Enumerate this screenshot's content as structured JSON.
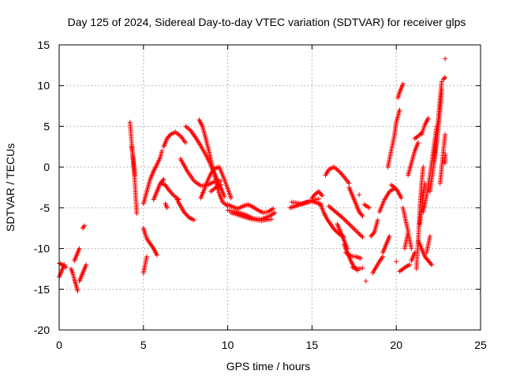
{
  "chart_data": {
    "type": "scatter",
    "title": "Day 125 of 2024, Sidereal Day-to-day VTEC variation (SDTVAR) for receiver glps",
    "xlabel": "GPS time / hours",
    "ylabel": "SDTVAR / TECUs",
    "xlim": [
      0,
      25
    ],
    "ylim": [
      -20,
      15
    ],
    "xticks": [
      0,
      5,
      10,
      15,
      20,
      25
    ],
    "yticks": [
      -20,
      -15,
      -10,
      -5,
      0,
      5,
      10,
      15
    ],
    "grid": true,
    "marker": "+",
    "series": [
      {
        "name": "SDTVAR",
        "color": "#ff0000",
        "arcs": [
          {
            "x": [
              0.0,
              0.1,
              0.2,
              0.3
            ],
            "y": [
              -13.5,
              -13.0,
              -12.5,
              -12.0
            ]
          },
          {
            "x": [
              0.0,
              0.2,
              0.4
            ],
            "y": [
              -11.8,
              -12.0,
              -12.3
            ]
          },
          {
            "x": [
              0.7,
              0.8,
              0.9,
              1.0,
              1.1
            ],
            "y": [
              -12.5,
              -13.0,
              -13.8,
              -14.5,
              -15.2
            ]
          },
          {
            "x": [
              0.9,
              1.0,
              1.1,
              1.2
            ],
            "y": [
              -11.5,
              -11.0,
              -10.5,
              -10.0
            ]
          },
          {
            "x": [
              1.2,
              1.3,
              1.4,
              1.5,
              1.6
            ],
            "y": [
              -14.0,
              -13.5,
              -13.0,
              -12.5,
              -12.0
            ]
          },
          {
            "x": [
              1.4,
              1.5
            ],
            "y": [
              -7.5,
              -7.2
            ]
          },
          {
            "x": [
              4.2,
              4.3,
              4.4,
              4.5,
              4.6
            ],
            "y": [
              5.5,
              3.0,
              0.5,
              -2.0,
              -5.7
            ]
          },
          {
            "x": [
              4.3,
              4.4,
              4.5
            ],
            "y": [
              2.5,
              1.0,
              -1.0
            ]
          },
          {
            "x": [
              5.0,
              5.1,
              5.2,
              5.4,
              5.6,
              5.8
            ],
            "y": [
              -7.5,
              -8.2,
              -8.8,
              -9.4,
              -10.0,
              -10.8
            ]
          },
          {
            "x": [
              5.0,
              5.1,
              5.2
            ],
            "y": [
              -13.0,
              -12.0,
              -11.0
            ]
          },
          {
            "x": [
              5.0,
              5.2,
              5.4,
              5.6,
              5.8,
              6.0,
              6.1
            ],
            "y": [
              -4.5,
              -3.0,
              -1.5,
              -0.5,
              0.3,
              1.2,
              2.0
            ]
          },
          {
            "x": [
              5.6,
              5.8,
              6.0,
              6.2
            ],
            "y": [
              -4.0,
              -3.0,
              -2.0,
              -1.5
            ]
          },
          {
            "x": [
              6.1,
              6.3,
              6.5,
              6.8,
              7.1
            ],
            "y": [
              -2.0,
              -2.2,
              -2.8,
              -3.5,
              -4.0
            ]
          },
          {
            "x": [
              6.2,
              6.4,
              6.6,
              6.9,
              7.2,
              7.5
            ],
            "y": [
              2.5,
              3.5,
              4.0,
              4.3,
              3.8,
              3.0
            ]
          },
          {
            "x": [
              6.3,
              6.4
            ],
            "y": [
              -4.5,
              -5.0
            ]
          },
          {
            "x": [
              7.0,
              7.2,
              7.4,
              7.7,
              8.0
            ],
            "y": [
              -4.0,
              -4.8,
              -5.5,
              -6.2,
              -6.5
            ]
          },
          {
            "x": [
              7.2,
              7.6,
              8.0,
              8.4,
              8.8,
              9.2,
              9.6
            ],
            "y": [
              1.0,
              -0.5,
              -1.7,
              -2.3,
              -2.2,
              -1.8,
              -1.7
            ]
          },
          {
            "x": [
              7.5,
              7.8,
              8.1,
              8.4,
              8.7,
              9.0,
              9.3,
              9.6,
              9.8
            ],
            "y": [
              5.0,
              4.5,
              3.6,
              2.6,
              1.5,
              0.2,
              -1.2,
              -2.6,
              -3.6
            ]
          },
          {
            "x": [
              8.3,
              8.5,
              8.7,
              8.9,
              9.1,
              9.3,
              9.5,
              9.7,
              10.0
            ],
            "y": [
              5.8,
              5.0,
              3.5,
              1.8,
              0.0,
              -1.8,
              -3.3,
              -4.3,
              -4.8
            ]
          },
          {
            "x": [
              8.4,
              8.6,
              8.8,
              9.0,
              9.2,
              9.5,
              9.8,
              10.2
            ],
            "y": [
              -3.8,
              -2.8,
              -1.7,
              -0.8,
              -0.2,
              0.0,
              -1.5,
              -3.8
            ]
          },
          {
            "x": [
              9.0,
              9.3,
              9.6
            ],
            "y": [
              -3.0,
              -2.5,
              -2.2
            ]
          },
          {
            "x": [
              10.0,
              10.3,
              10.6,
              10.9,
              11.2,
              11.5,
              11.8,
              12.1,
              12.4,
              12.7
            ],
            "y": [
              -4.6,
              -4.9,
              -5.1,
              -4.8,
              -4.6,
              -4.9,
              -5.3,
              -5.6,
              -5.5,
              -5.1
            ]
          },
          {
            "x": [
              10.0,
              10.5,
              11.0,
              11.5,
              12.0,
              12.5,
              12.8
            ],
            "y": [
              -5.3,
              -5.5,
              -5.8,
              -6.3,
              -6.4,
              -6.0,
              -5.6
            ]
          },
          {
            "x": [
              10.2,
              10.8,
              11.4,
              12.0,
              12.6
            ],
            "y": [
              -5.6,
              -6.0,
              -6.4,
              -6.6,
              -6.4
            ]
          },
          {
            "x": [
              13.7,
              14.0,
              14.3,
              14.6,
              14.9,
              15.2,
              15.4
            ],
            "y": [
              -5.0,
              -4.8,
              -4.6,
              -4.4,
              -4.2,
              -4.0,
              -3.9
            ]
          },
          {
            "x": [
              13.8,
              14.1,
              14.4,
              14.7,
              15.0,
              15.3,
              15.5
            ],
            "y": [
              -4.3,
              -4.4,
              -4.5,
              -4.3,
              -4.2,
              -4.4,
              -4.6
            ]
          },
          {
            "x": [
              15.0,
              15.2,
              15.4,
              15.6
            ],
            "y": [
              -3.8,
              -3.3,
              -3.0,
              -3.5
            ]
          },
          {
            "x": [
              15.5,
              15.7,
              15.9,
              16.1,
              16.3,
              16.6,
              16.9
            ],
            "y": [
              -4.5,
              -5.6,
              -6.4,
              -7.0,
              -7.6,
              -8.2,
              -8.6
            ]
          },
          {
            "x": [
              15.8,
              16.0,
              16.3,
              16.6,
              16.9,
              17.2
            ],
            "y": [
              -1.0,
              -0.3,
              0.0,
              -0.5,
              -1.2,
              -2.0
            ]
          },
          {
            "x": [
              16.0,
              16.4,
              16.8,
              17.2,
              17.6,
              18.0
            ],
            "y": [
              -4.8,
              -5.5,
              -6.2,
              -7.0,
              -7.8,
              -8.6
            ]
          },
          {
            "x": [
              16.5,
              16.7,
              16.9,
              17.1
            ],
            "y": [
              -7.0,
              -8.0,
              -9.0,
              -10.0
            ]
          },
          {
            "x": [
              16.9,
              17.1,
              17.3,
              17.5,
              17.7
            ],
            "y": [
              -9.5,
              -10.5,
              -11.5,
              -12.3,
              -12.7
            ]
          },
          {
            "x": [
              17.2,
              17.4,
              17.6,
              17.8,
              18.0
            ],
            "y": [
              -2.5,
              -3.5,
              -4.5,
              -5.5,
              -6.0
            ]
          },
          {
            "x": [
              17.0,
              17.3,
              17.6,
              17.9
            ],
            "y": [
              -10.5,
              -10.9,
              -11.0,
              -11.2
            ]
          },
          {
            "x": [
              17.4,
              17.7,
              18.0
            ],
            "y": [
              -12.3,
              -12.5,
              -12.4
            ]
          },
          {
            "x": [
              17.8
            ],
            "y": [
              -3.4
            ]
          },
          {
            "x": [
              18.1,
              18.4
            ],
            "y": [
              -4.6,
              -5.0
            ]
          },
          {
            "x": [
              18.2
            ],
            "y": [
              -14.0
            ]
          },
          {
            "x": [
              18.5,
              18.7,
              18.9
            ],
            "y": [
              -8.5,
              -8.0,
              -6.5
            ]
          },
          {
            "x": [
              18.6,
              18.8,
              19.0,
              19.2
            ],
            "y": [
              -13.0,
              -12.3,
              -11.6,
              -11.0
            ]
          },
          {
            "x": [
              19.0,
              19.3,
              19.6,
              19.9
            ],
            "y": [
              -5.5,
              -4.0,
              -3.0,
              -2.6
            ]
          },
          {
            "x": [
              19.2,
              19.4,
              19.6
            ],
            "y": [
              -10.5,
              -9.5,
              -8.5
            ]
          },
          {
            "x": [
              19.7,
              19.9,
              20.1,
              20.3
            ],
            "y": [
              -2.2,
              -2.5,
              -3.0,
              -3.8
            ]
          },
          {
            "x": [
              19.5,
              19.7,
              19.9,
              20.0,
              20.2
            ],
            "y": [
              0.0,
              2.0,
              4.0,
              5.5,
              7.0
            ]
          },
          {
            "x": [
              20.1,
              20.2,
              20.3,
              20.4
            ],
            "y": [
              8.5,
              9.2,
              9.7,
              10.2
            ]
          },
          {
            "x": [
              20.0
            ],
            "y": [
              -11.6
            ]
          },
          {
            "x": [
              20.2,
              20.4,
              20.6,
              20.8
            ],
            "y": [
              -12.8,
              -12.5,
              -12.2,
              -12.0
            ]
          },
          {
            "x": [
              20.4,
              20.5,
              20.6,
              20.7
            ],
            "y": [
              -5.0,
              -6.0,
              -7.0,
              -7.8
            ]
          },
          {
            "x": [
              20.5,
              20.6,
              20.7,
              20.8,
              20.9
            ],
            "y": [
              -10.0,
              -9.0,
              -8.0,
              -9.0,
              -10.0
            ]
          },
          {
            "x": [
              20.7,
              20.9,
              21.1,
              21.3
            ],
            "y": [
              -1.0,
              0.5,
              2.0,
              3.0
            ]
          },
          {
            "x": [
              20.9,
              21.0,
              21.1
            ],
            "y": [
              -11.5,
              -11.0,
              -10.5
            ]
          },
          {
            "x": [
              21.1,
              21.3,
              21.5
            ],
            "y": [
              3.5,
              3.8,
              4.2
            ]
          },
          {
            "x": [
              21.2,
              21.3,
              21.4,
              21.5,
              21.6
            ],
            "y": [
              -12.5,
              -9.0,
              -5.0,
              -2.0,
              0.0
            ]
          },
          {
            "x": [
              21.4,
              21.5,
              21.6,
              21.7
            ],
            "y": [
              -7.0,
              -5.0,
              -3.5,
              -2.0
            ]
          },
          {
            "x": [
              21.3,
              21.5,
              21.7,
              21.9,
              22.1
            ],
            "y": [
              -9.0,
              -10.0,
              -11.0,
              -11.5,
              -12.0
            ]
          },
          {
            "x": [
              21.5,
              21.7,
              21.9
            ],
            "y": [
              4.0,
              5.2,
              6.0
            ]
          },
          {
            "x": [
              21.6,
              21.8,
              22.0,
              22.2,
              22.4
            ],
            "y": [
              -5.5,
              -3.5,
              -1.0,
              2.0,
              5.0
            ]
          },
          {
            "x": [
              21.8,
              21.9,
              22.0
            ],
            "y": [
              -10.5,
              -9.5,
              -8.5
            ]
          },
          {
            "x": [
              22.0,
              22.2,
              22.4,
              22.5,
              22.6,
              22.7
            ],
            "y": [
              -3.0,
              0.0,
              3.0,
              5.0,
              7.0,
              9.5
            ]
          },
          {
            "x": [
              22.2,
              22.4,
              22.5,
              22.6,
              22.7
            ],
            "y": [
              0.0,
              4.0,
              6.0,
              8.5,
              10.5
            ]
          },
          {
            "x": [
              22.6,
              22.7,
              22.8,
              22.9
            ],
            "y": [
              -2.0,
              0.0,
              2.0,
              4.0
            ]
          },
          {
            "x": [
              22.8,
              22.9
            ],
            "y": [
              10.8,
              11.0
            ]
          },
          {
            "x": [
              22.9
            ],
            "y": [
              13.3
            ]
          },
          {
            "x": [
              22.9,
              22.9
            ],
            "y": [
              1.6,
              0.5
            ]
          }
        ]
      }
    ]
  }
}
